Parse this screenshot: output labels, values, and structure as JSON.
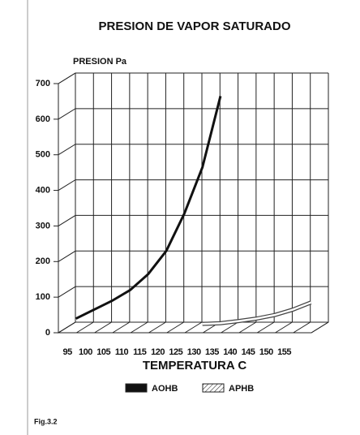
{
  "chart_data": {
    "type": "line",
    "title": "PRESION DE VAPOR SATURADO",
    "y_label": "PRESION Pa",
    "x_label": "TEMPERATURA C",
    "figure_label": "Fig.3.2",
    "categories": [
      "95",
      "100",
      "105",
      "110",
      "115",
      "120",
      "125",
      "130",
      "135",
      "140",
      "145",
      "150",
      "155",
      null
    ],
    "series": [
      {
        "name": "AOHB",
        "color": "#111111",
        "values": [
          25,
          50,
          75,
          105,
          150,
          215,
          320,
          450,
          650,
          null,
          null,
          null,
          null,
          null
        ]
      },
      {
        "name": "APHB",
        "color": "#444444",
        "values": [
          null,
          null,
          null,
          null,
          null,
          null,
          null,
          10,
          12,
          18,
          25,
          35,
          50,
          70
        ]
      }
    ],
    "ylim": [
      0,
      700
    ],
    "yticks": [
      0,
      100,
      200,
      300,
      400,
      500,
      600,
      700
    ],
    "grid": true
  }
}
